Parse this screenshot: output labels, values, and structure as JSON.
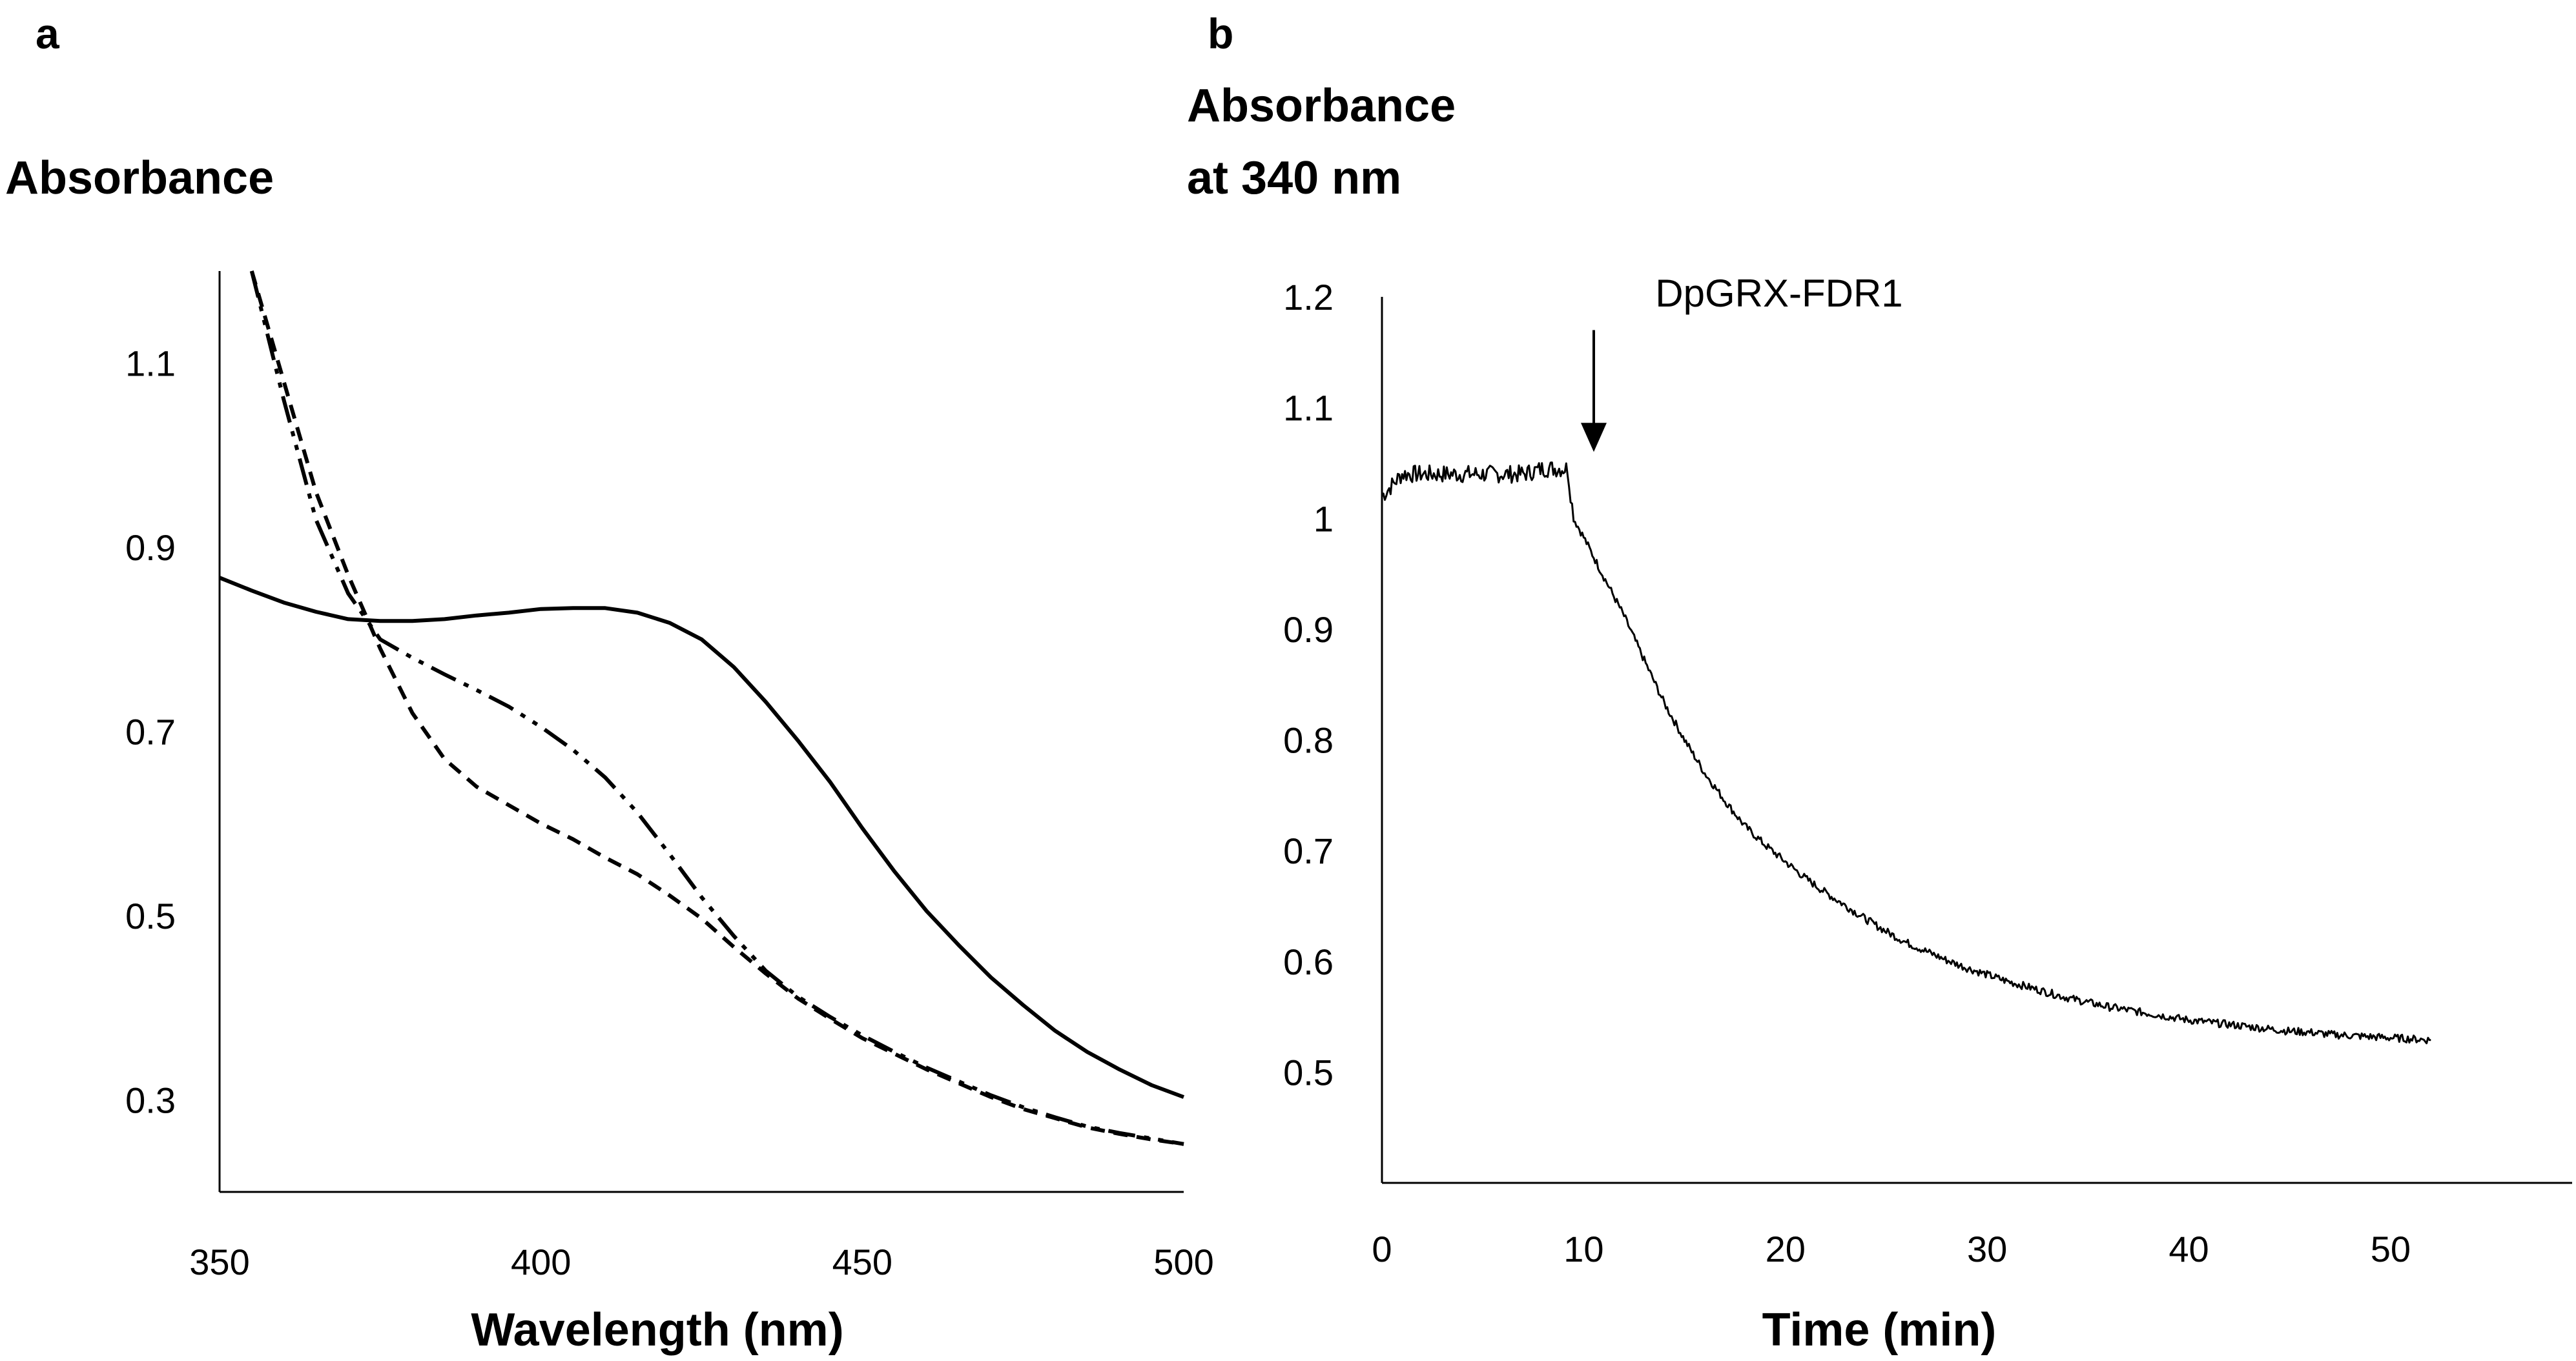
{
  "panels": {
    "a": "a",
    "b": "b"
  },
  "chart_data": [
    {
      "type": "line",
      "panel": "a",
      "ylabel": "Absorbance",
      "xlabel": "Wavelength (nm)",
      "xlim": [
        350,
        500
      ],
      "ylim": [
        0.2,
        1.2
      ],
      "xticks": [
        350,
        400,
        450,
        500
      ],
      "yticks": [
        0.3,
        0.5,
        0.7,
        0.9,
        1.1
      ],
      "grid": false,
      "series": [
        {
          "style": "solid",
          "x": [
            350,
            355,
            360,
            365,
            370,
            375,
            380,
            385,
            390,
            395,
            400,
            405,
            410,
            415,
            420,
            425,
            430,
            435,
            440,
            445,
            450,
            455,
            460,
            465,
            470,
            475,
            480,
            485,
            490,
            495,
            500
          ],
          "y": [
            0.867,
            0.853,
            0.84,
            0.83,
            0.822,
            0.82,
            0.82,
            0.822,
            0.826,
            0.829,
            0.833,
            0.834,
            0.834,
            0.829,
            0.818,
            0.8,
            0.77,
            0.732,
            0.69,
            0.645,
            0.595,
            0.548,
            0.505,
            0.468,
            0.433,
            0.403,
            0.375,
            0.352,
            0.333,
            0.316,
            0.303
          ]
        },
        {
          "style": "dash",
          "x": [
            355,
            360,
            365,
            370,
            375,
            380,
            385,
            390,
            395,
            400,
            405,
            410,
            415,
            420,
            425,
            430,
            435,
            440,
            445,
            450,
            455,
            460,
            465,
            470,
            475,
            480,
            485,
            490,
            495,
            500
          ],
          "y": [
            1.2,
            1.08,
            0.96,
            0.87,
            0.79,
            0.72,
            0.67,
            0.64,
            0.62,
            0.6,
            0.583,
            0.563,
            0.545,
            0.522,
            0.497,
            0.466,
            0.437,
            0.41,
            0.388,
            0.367,
            0.35,
            0.333,
            0.318,
            0.303,
            0.29,
            0.28,
            0.27,
            0.263,
            0.257,
            0.252
          ]
        },
        {
          "style": "dash-dot-dot",
          "x": [
            355,
            360,
            365,
            370,
            375,
            380,
            385,
            390,
            395,
            400,
            405,
            410,
            415,
            420,
            425,
            430,
            435,
            440,
            445,
            450,
            455,
            460,
            465,
            470,
            475,
            480,
            485,
            490,
            495,
            500
          ],
          "y": [
            1.2,
            1.06,
            0.93,
            0.85,
            0.8,
            0.78,
            0.762,
            0.745,
            0.727,
            0.705,
            0.68,
            0.65,
            0.612,
            0.567,
            0.52,
            0.478,
            0.44,
            0.412,
            0.39,
            0.37,
            0.352,
            0.335,
            0.32,
            0.305,
            0.292,
            0.281,
            0.271,
            0.264,
            0.258,
            0.252
          ]
        }
      ]
    },
    {
      "type": "line",
      "panel": "b",
      "ylabel_lines": [
        "Absorbance",
        "at 340 nm"
      ],
      "xlabel": "Time (min)",
      "xlim": [
        0,
        59
      ],
      "ylim": [
        0.4,
        1.2
      ],
      "xticks": [
        0,
        10,
        20,
        30,
        40,
        50
      ],
      "yticks": [
        0.5,
        0.6,
        0.7,
        0.8,
        0.9,
        1,
        1.1,
        1.2
      ],
      "grid": false,
      "annotation": {
        "text": "DpGRX-FDR1",
        "x": 10.5,
        "y_from": 1.17,
        "y_to": 1.06
      },
      "series": [
        {
          "style": "solid-noisy",
          "x": [
            0,
            1,
            2,
            3,
            4,
            5,
            6,
            7,
            8,
            9,
            9.2,
            9.5,
            10,
            11,
            12,
            13,
            14,
            15,
            16,
            17,
            18,
            19,
            20,
            21,
            22,
            23,
            24,
            25,
            26,
            27,
            28,
            29,
            30,
            31,
            32,
            33,
            34,
            35,
            36,
            37,
            38,
            39,
            40,
            41,
            42,
            43,
            44,
            45,
            46,
            47,
            48,
            49,
            50,
            51,
            52
          ],
          "y": [
            1.02,
            1.04,
            1.04,
            1.04,
            1.04,
            1.04,
            1.04,
            1.04,
            1.045,
            1.045,
            1.045,
            1.0,
            0.983,
            0.947,
            0.912,
            0.872,
            0.833,
            0.8,
            0.77,
            0.745,
            0.722,
            0.705,
            0.69,
            0.675,
            0.662,
            0.65,
            0.638,
            0.627,
            0.617,
            0.609,
            0.601,
            0.594,
            0.588,
            0.582,
            0.577,
            0.572,
            0.567,
            0.563,
            0.559,
            0.556,
            0.553,
            0.55,
            0.547,
            0.545,
            0.543,
            0.541,
            0.539,
            0.537,
            0.536,
            0.534,
            0.533,
            0.532,
            0.531,
            0.53,
            0.529
          ]
        }
      ]
    }
  ]
}
